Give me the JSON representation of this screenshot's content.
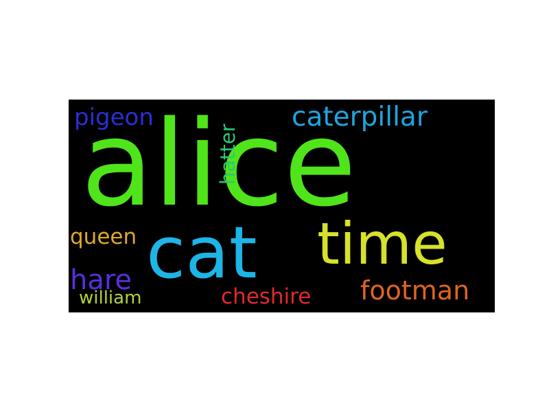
{
  "words": [
    {
      "id": "alice",
      "text": "alice",
      "color": "#50e41a"
    },
    {
      "id": "cat",
      "text": "cat",
      "color": "#1eb5e6"
    },
    {
      "id": "time",
      "text": "time",
      "color": "#d6e22a"
    },
    {
      "id": "caterpillar",
      "text": "caterpillar",
      "color": "#1ea5de"
    },
    {
      "id": "pigeon",
      "text": "pigeon",
      "color": "#2a2ed6"
    },
    {
      "id": "hatter",
      "text": "hatter",
      "color": "#2cc878"
    },
    {
      "id": "queen",
      "text": "queen",
      "color": "#e0a82a"
    },
    {
      "id": "hare",
      "text": "hare",
      "color": "#5a2ee0"
    },
    {
      "id": "william",
      "text": "william",
      "color": "#b4d23a"
    },
    {
      "id": "cheshire",
      "text": "cheshire",
      "color": "#e02a2a"
    },
    {
      "id": "footman",
      "text": "footman",
      "color": "#e0641e"
    }
  ]
}
